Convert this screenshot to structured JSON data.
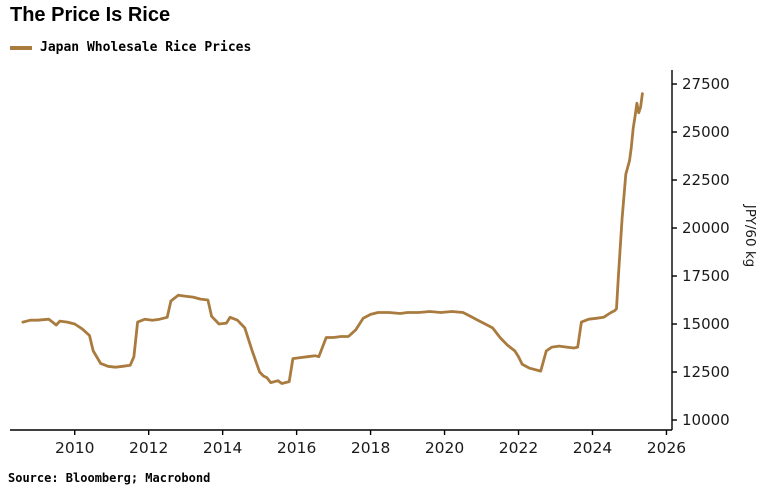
{
  "header": {
    "title": "The Price Is Rice"
  },
  "legend": {
    "label": "Japan Wholesale Rice Prices"
  },
  "source": {
    "text": "Source: Bloomberg; Macrobond"
  },
  "colors": {
    "line": "#aa7b3f",
    "axis": "#000000",
    "tick_text": "#1a1a1a"
  },
  "chart_data": {
    "type": "line",
    "title": "The Price Is Rice",
    "ylabel": "JPY/60 kg",
    "xlabel": "",
    "grid": false,
    "legend_position": "top-left",
    "axis_side": "right",
    "xlim": [
      2008.25,
      2026.15
    ],
    "ylim": [
      9480,
      28230
    ],
    "yticks": [
      10000,
      12500,
      15000,
      17500,
      20000,
      22500,
      25000,
      27500
    ],
    "xticks": [
      2010,
      2012,
      2014,
      2016,
      2018,
      2020,
      2022,
      2024,
      2026
    ],
    "series": [
      {
        "name": "Japan Wholesale Rice Prices",
        "x": [
          2008.6,
          2008.8,
          2009.0,
          2009.3,
          2009.5,
          2009.6,
          2009.8,
          2010.0,
          2010.2,
          2010.4,
          2010.5,
          2010.7,
          2010.9,
          2011.1,
          2011.3,
          2011.5,
          2011.6,
          2011.7,
          2011.9,
          2012.1,
          2012.3,
          2012.5,
          2012.6,
          2012.8,
          2013.0,
          2013.2,
          2013.4,
          2013.6,
          2013.7,
          2013.9,
          2014.1,
          2014.2,
          2014.4,
          2014.6,
          2014.8,
          2015.0,
          2015.1,
          2015.2,
          2015.3,
          2015.5,
          2015.6,
          2015.8,
          2015.9,
          2016.1,
          2016.3,
          2016.5,
          2016.6,
          2016.8,
          2017.0,
          2017.2,
          2017.4,
          2017.6,
          2017.8,
          2018.0,
          2018.2,
          2018.5,
          2018.8,
          2019.0,
          2019.3,
          2019.6,
          2019.9,
          2020.2,
          2020.5,
          2020.7,
          2020.9,
          2021.1,
          2021.3,
          2021.5,
          2021.7,
          2021.9,
          2022.0,
          2022.1,
          2022.3,
          2022.5,
          2022.6,
          2022.75,
          2022.9,
          2023.1,
          2023.3,
          2023.5,
          2023.6,
          2023.7,
          2023.9,
          2024.1,
          2024.3,
          2024.5,
          2024.6,
          2024.65,
          2024.7,
          2024.8,
          2024.9,
          2025.0,
          2025.05,
          2025.1,
          2025.15,
          2025.2,
          2025.25,
          2025.3,
          2025.35
        ],
        "values": [
          15100,
          15200,
          15200,
          15250,
          14950,
          15150,
          15100,
          15000,
          14750,
          14400,
          13600,
          12950,
          12800,
          12750,
          12800,
          12850,
          13300,
          15100,
          15250,
          15200,
          15250,
          15350,
          16200,
          16500,
          16450,
          16400,
          16300,
          16250,
          15400,
          15000,
          15050,
          15350,
          15200,
          14800,
          13600,
          12500,
          12300,
          12200,
          11950,
          12050,
          11900,
          12000,
          13200,
          13250,
          13300,
          13350,
          13300,
          14300,
          14300,
          14350,
          14350,
          14700,
          15300,
          15500,
          15600,
          15600,
          15550,
          15600,
          15600,
          15650,
          15600,
          15650,
          15600,
          15400,
          15200,
          15000,
          14800,
          14300,
          13900,
          13600,
          13300,
          12900,
          12700,
          12600,
          12550,
          13600,
          13800,
          13850,
          13800,
          13750,
          13800,
          15100,
          15250,
          15300,
          15350,
          15600,
          15700,
          15800,
          17500,
          20500,
          22800,
          23500,
          24200,
          25200,
          25800,
          26500,
          26000,
          26300,
          27000
        ]
      }
    ]
  }
}
